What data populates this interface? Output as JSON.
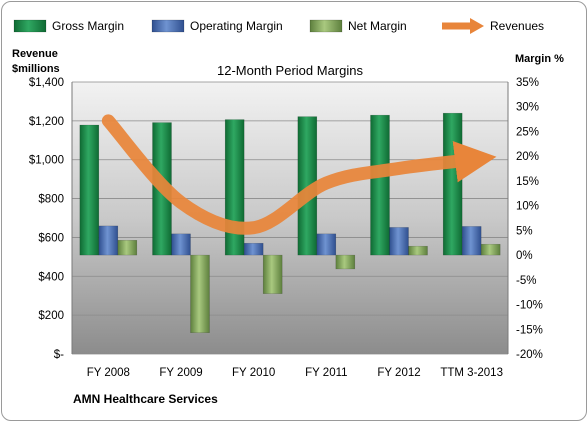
{
  "chart_data": {
    "type": "bar",
    "title": "12-Month Period Margins",
    "left_axis_label": [
      "Revenue",
      "$millions"
    ],
    "right_axis_label": "Margin %",
    "footer": "AMN Healthcare Services",
    "categories": [
      "FY 2008",
      "FY 2009",
      "FY 2010",
      "FY 2011",
      "FY 2012",
      "TTM 3-2013"
    ],
    "y_left": {
      "min": 0,
      "max": 1400,
      "step": 200,
      "tick_labels": [
        "$-",
        "$200",
        "$400",
        "$600",
        "$800",
        "$1,000",
        "$1,200",
        "$1,400"
      ]
    },
    "y_right": {
      "min": -20,
      "max": 35,
      "step": 5,
      "tick_labels": [
        "-20%",
        "-15%",
        "-10%",
        "-5%",
        "0%",
        "5%",
        "10%",
        "15%",
        "20%",
        "25%",
        "30%",
        "35%"
      ]
    },
    "series": [
      {
        "name": "Gross Margin",
        "axis": "right",
        "color": "#1f8a4c",
        "values": [
          26.3,
          26.8,
          27.4,
          28.0,
          28.3,
          28.7
        ]
      },
      {
        "name": "Operating Margin",
        "axis": "right",
        "color": "#4a6fb5",
        "values": [
          5.9,
          4.3,
          2.4,
          4.3,
          5.6,
          5.8
        ]
      },
      {
        "name": "Net Margin",
        "axis": "right",
        "color": "#7fa35a",
        "values": [
          3.0,
          -15.7,
          -7.8,
          -2.8,
          1.8,
          2.2
        ]
      },
      {
        "name": "Revenues",
        "axis": "left",
        "type": "line",
        "color": "#e8853a",
        "values": [
          1200,
          780,
          650,
          880,
          955,
          1000
        ]
      }
    ],
    "grid": true,
    "legend_position": "top"
  }
}
